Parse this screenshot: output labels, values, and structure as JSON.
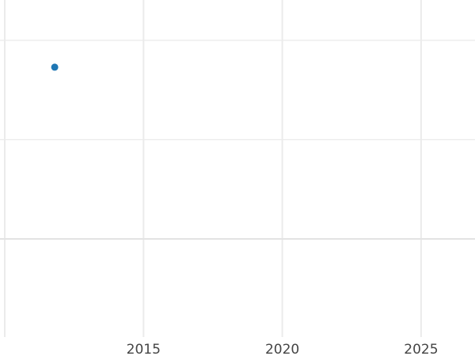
{
  "chart_data": {
    "type": "scatter",
    "title": "",
    "xlabel": "",
    "ylabel": "",
    "x_ticks": [
      2010,
      2015,
      2020,
      2025
    ],
    "x_tick_labels": [
      "",
      "2015",
      "2020",
      "2025"
    ],
    "xlim": [
      2010,
      2026.9
    ],
    "y_gridlines": [
      0,
      1,
      2
    ],
    "ylim": [
      -1,
      2.4
    ],
    "y_axis_labels_visible": false,
    "grid": true,
    "points": [
      {
        "x": 2011.8,
        "y": 1.73
      }
    ],
    "colors": {
      "point": "#1f77b4",
      "grid": "#ebebeb",
      "zero_line": "#e3e3e3",
      "tick_text": "#444444"
    }
  }
}
